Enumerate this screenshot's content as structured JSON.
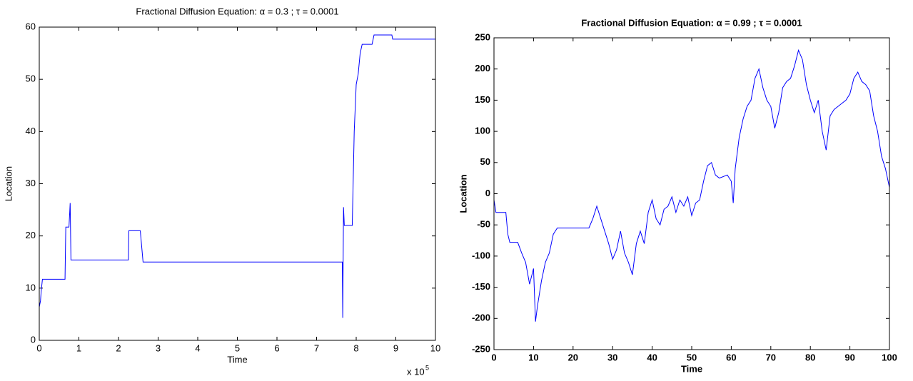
{
  "chart_data": [
    {
      "type": "line",
      "title": "Fractional Diffusion Equation: α = 0.3 ; τ = 0.0001",
      "x_label": "Time",
      "y_label": "Location",
      "x_scale_label": "x 10",
      "x_scale_exponent": "5",
      "xlim": [
        0,
        10
      ],
      "xticks": [
        0,
        1,
        2,
        3,
        4,
        5,
        6,
        7,
        8,
        9,
        10
      ],
      "ylim": [
        0,
        60
      ],
      "yticks": [
        0,
        10,
        20,
        30,
        40,
        50,
        60
      ],
      "color": "#0000ff",
      "x": [
        0,
        0.03,
        0.05,
        0.08,
        0.1,
        0.65,
        0.66,
        0.67,
        0.75,
        0.78,
        0.8,
        2.25,
        2.26,
        2.55,
        2.62,
        7.65,
        7.66,
        7.68,
        7.7,
        7.9,
        7.95,
        8.0,
        8.05,
        8.1,
        8.15,
        8.4,
        8.45,
        8.9,
        8.92,
        10
      ],
      "values": [
        6.4,
        7.5,
        9.5,
        11.7,
        11.7,
        11.7,
        17,
        21.7,
        21.7,
        26.3,
        15.4,
        15.4,
        21,
        21,
        15,
        15,
        4.3,
        25.5,
        22,
        22,
        40,
        49,
        51,
        55,
        56.7,
        56.7,
        58.5,
        58.5,
        57.7,
        57.7
      ]
    },
    {
      "type": "line",
      "title": "Fractional Diffusion Equation: α = 0.99 ; τ = 0.0001",
      "x_label": "Time",
      "y_label": "Location",
      "xlim": [
        0,
        100
      ],
      "xticks": [
        0,
        10,
        20,
        30,
        40,
        50,
        60,
        70,
        80,
        90,
        100
      ],
      "ylim": [
        -250,
        250
      ],
      "yticks": [
        -250,
        -200,
        -150,
        -100,
        -50,
        0,
        50,
        100,
        150,
        200,
        250
      ],
      "color": "#0000ff",
      "x": [
        0,
        0.5,
        3,
        3.5,
        4,
        6,
        7,
        8,
        9,
        10,
        10.5,
        11,
        12,
        13,
        14,
        15,
        16,
        24,
        25,
        26,
        27,
        28,
        29,
        30,
        31,
        32,
        33,
        34,
        35,
        36,
        37,
        38,
        39,
        40,
        41,
        42,
        43,
        44,
        45,
        46,
        47,
        48,
        49,
        50,
        51,
        52,
        53,
        54,
        55,
        56,
        57,
        59,
        60,
        60.5,
        61,
        62,
        63,
        64,
        65,
        66,
        67,
        68,
        69,
        70,
        71,
        72,
        73,
        74,
        75,
        76,
        77,
        78,
        79,
        80,
        81,
        82,
        83,
        84,
        85,
        86,
        87,
        88,
        89,
        90,
        91,
        92,
        93,
        94,
        95,
        96,
        97,
        98,
        99,
        100
      ],
      "values": [
        -10,
        -30,
        -30,
        -65,
        -78,
        -78,
        -95,
        -110,
        -145,
        -120,
        -205,
        -180,
        -140,
        -110,
        -95,
        -65,
        -55,
        -55,
        -40,
        -20,
        -40,
        -60,
        -80,
        -105,
        -90,
        -60,
        -95,
        -110,
        -130,
        -80,
        -60,
        -80,
        -30,
        -10,
        -40,
        -50,
        -25,
        -20,
        -5,
        -30,
        -10,
        -20,
        -5,
        -35,
        -15,
        -10,
        20,
        45,
        50,
        30,
        25,
        30,
        20,
        -15,
        40,
        90,
        120,
        140,
        150,
        185,
        200,
        170,
        150,
        140,
        105,
        130,
        170,
        180,
        185,
        205,
        230,
        215,
        175,
        150,
        130,
        150,
        100,
        70,
        125,
        135,
        140,
        145,
        150,
        160,
        185,
        195,
        180,
        175,
        165,
        125,
        100,
        60,
        40,
        10
      ]
    }
  ]
}
